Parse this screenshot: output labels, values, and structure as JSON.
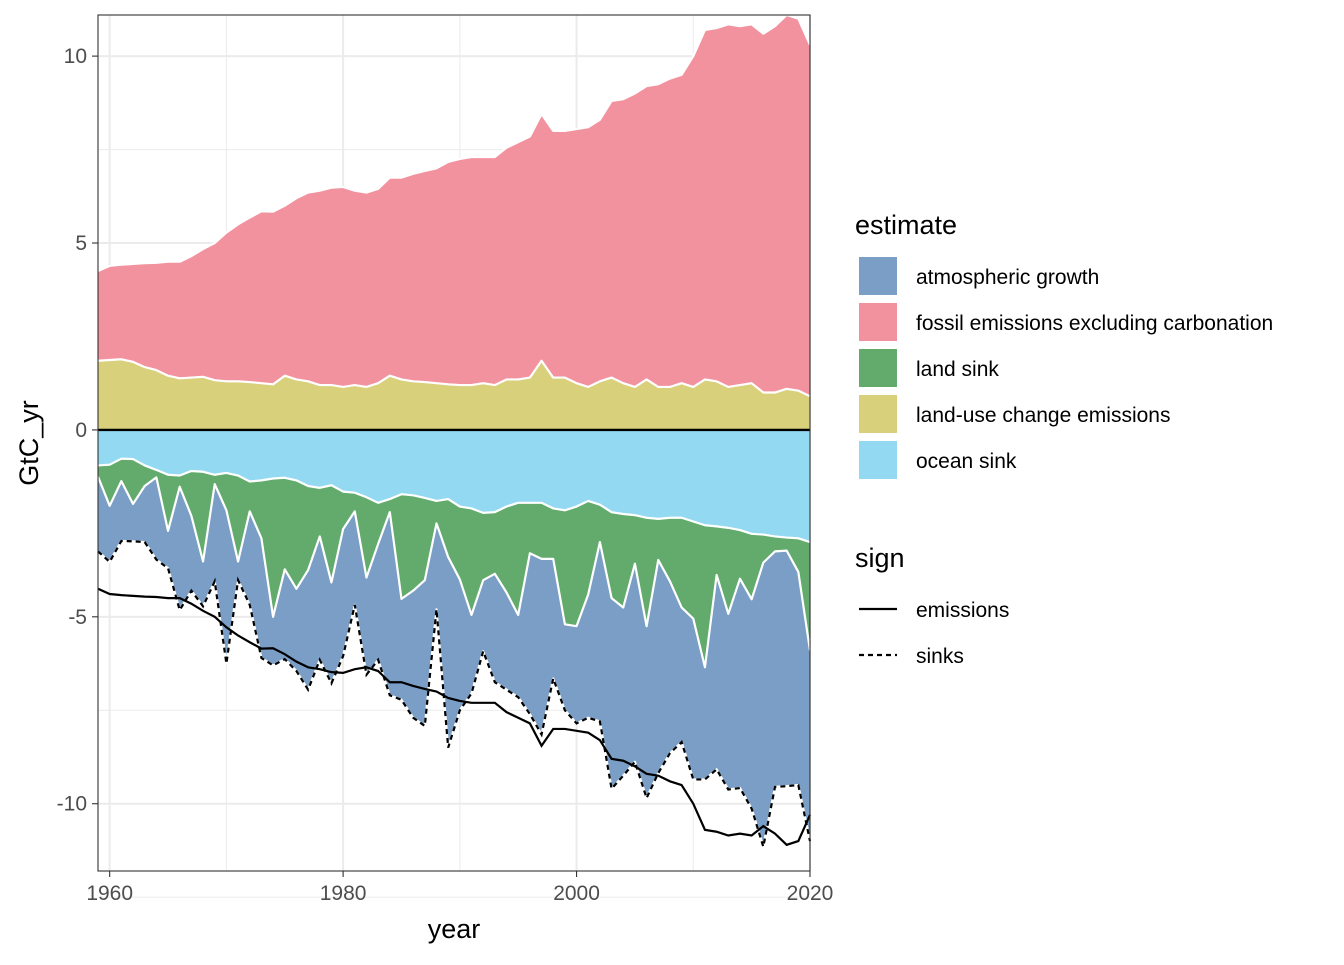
{
  "chart_data": {
    "type": "area",
    "xlabel": "year",
    "ylabel": "GtC_yr",
    "xlim": [
      1959,
      2020
    ],
    "ylim": [
      -11.8,
      11.1
    ],
    "grid": true,
    "x_ticks": [
      1960,
      1980,
      2000,
      2020
    ],
    "x_tick_labels": [
      "1960",
      "1980",
      "2000",
      "2020"
    ],
    "y_ticks": [
      10,
      5,
      0,
      -5,
      -10
    ],
    "y_tick_labels": [
      "10",
      "5",
      "0",
      "-5",
      "-10"
    ],
    "legend_position": "right",
    "legends": [
      {
        "title": "estimate",
        "entries": [
          {
            "label": "atmospheric growth",
            "color": "#7a9ec5"
          },
          {
            "label": "fossil emissions excluding carbonation",
            "color": "#f2929e"
          },
          {
            "label": "land sink",
            "color": "#62ab6c"
          },
          {
            "label": "land-use change emissions",
            "color": "#d9d07c"
          },
          {
            "label": "ocean sink",
            "color": "#94d9f2"
          }
        ]
      },
      {
        "title": "sign",
        "entries": [
          {
            "label": "emissions",
            "linetype": "solid"
          },
          {
            "label": "sinks",
            "linetype": "dashed"
          }
        ]
      }
    ],
    "x": [
      1959,
      1960,
      1961,
      1962,
      1963,
      1964,
      1965,
      1966,
      1967,
      1968,
      1969,
      1970,
      1971,
      1972,
      1973,
      1974,
      1975,
      1976,
      1977,
      1978,
      1979,
      1980,
      1981,
      1982,
      1983,
      1984,
      1985,
      1986,
      1987,
      1988,
      1989,
      1990,
      1991,
      1992,
      1993,
      1994,
      1995,
      1996,
      1997,
      1998,
      1999,
      2000,
      2001,
      2002,
      2003,
      2004,
      2005,
      2006,
      2007,
      2008,
      2009,
      2010,
      2011,
      2012,
      2013,
      2014,
      2015,
      2016,
      2017,
      2018,
      2019,
      2020
    ],
    "series": [
      {
        "name": "land-use change emissions",
        "sign": "emissions",
        "values": [
          1.85,
          1.87,
          1.89,
          1.82,
          1.68,
          1.6,
          1.45,
          1.38,
          1.4,
          1.42,
          1.33,
          1.3,
          1.3,
          1.28,
          1.25,
          1.22,
          1.45,
          1.35,
          1.3,
          1.2,
          1.2,
          1.15,
          1.2,
          1.15,
          1.25,
          1.45,
          1.35,
          1.3,
          1.28,
          1.25,
          1.22,
          1.2,
          1.2,
          1.25,
          1.2,
          1.35,
          1.35,
          1.4,
          1.85,
          1.4,
          1.4,
          1.25,
          1.15,
          1.3,
          1.4,
          1.25,
          1.15,
          1.35,
          1.15,
          1.15,
          1.25,
          1.15,
          1.35,
          1.3,
          1.15,
          1.2,
          1.25,
          1.0,
          1.0,
          1.1,
          1.05,
          0.9
        ]
      },
      {
        "name": "fossil emissions excluding carbonation",
        "sign": "emissions",
        "values": [
          2.4,
          2.52,
          2.53,
          2.62,
          2.78,
          2.87,
          3.05,
          3.12,
          3.25,
          3.42,
          3.67,
          3.98,
          4.2,
          4.4,
          4.6,
          4.62,
          4.55,
          4.85,
          5.05,
          5.2,
          5.28,
          5.35,
          5.2,
          5.2,
          5.2,
          5.3,
          5.4,
          5.55,
          5.65,
          5.75,
          5.95,
          6.05,
          6.1,
          6.05,
          6.1,
          6.2,
          6.35,
          6.45,
          6.6,
          6.6,
          6.6,
          6.8,
          6.95,
          7.0,
          7.4,
          7.6,
          7.85,
          7.85,
          8.1,
          8.25,
          8.25,
          8.85,
          9.35,
          9.45,
          9.7,
          9.6,
          9.6,
          9.6,
          9.8,
          10.0,
          9.95,
          9.4
        ]
      },
      {
        "name": "ocean sink",
        "sign": "sinks",
        "values": [
          -0.95,
          -0.93,
          -0.77,
          -0.78,
          -0.95,
          -1.07,
          -1.2,
          -1.22,
          -1.1,
          -1.12,
          -1.2,
          -1.15,
          -1.22,
          -1.38,
          -1.35,
          -1.3,
          -1.28,
          -1.35,
          -1.5,
          -1.55,
          -1.48,
          -1.65,
          -1.68,
          -1.8,
          -1.95,
          -1.85,
          -1.72,
          -1.75,
          -1.82,
          -1.9,
          -1.85,
          -2.05,
          -2.1,
          -2.22,
          -2.2,
          -2.05,
          -1.95,
          -1.95,
          -1.95,
          -2.1,
          -2.15,
          -2.05,
          -1.9,
          -2.0,
          -2.2,
          -2.25,
          -2.28,
          -2.35,
          -2.38,
          -2.35,
          -2.35,
          -2.45,
          -2.55,
          -2.58,
          -2.62,
          -2.68,
          -2.78,
          -2.8,
          -2.85,
          -2.88,
          -2.9,
          -3.0
        ]
      },
      {
        "name": "land sink",
        "sign": "sinks",
        "values": [
          -0.3,
          -1.1,
          -0.6,
          -1.2,
          -0.55,
          -0.2,
          -1.5,
          -0.3,
          -1.2,
          -2.4,
          -0.25,
          -1.0,
          -2.3,
          -0.8,
          -1.55,
          -3.7,
          -2.45,
          -2.9,
          -2.25,
          -1.3,
          -2.6,
          -1.0,
          -0.5,
          -2.15,
          -1.1,
          -0.35,
          -2.8,
          -2.55,
          -2.2,
          -0.6,
          -1.55,
          -1.95,
          -2.85,
          -1.8,
          -1.65,
          -2.3,
          -3.0,
          -1.35,
          -1.5,
          -1.35,
          -3.05,
          -3.2,
          -2.5,
          -1.0,
          -2.3,
          -2.5,
          -1.3,
          -2.9,
          -1.1,
          -1.7,
          -2.4,
          -2.6,
          -3.8,
          -1.3,
          -2.3,
          -1.3,
          -1.75,
          -0.75,
          -0.4,
          -0.35,
          -0.9,
          -2.9
        ]
      },
      {
        "name": "atmospheric growth",
        "sign": "sinks",
        "values": [
          -2.0,
          -1.5,
          -1.6,
          -1.0,
          -1.5,
          -2.2,
          -1.0,
          -3.3,
          -2.0,
          -1.2,
          -2.6,
          -4.1,
          -0.5,
          -2.5,
          -3.2,
          -1.3,
          -2.4,
          -2.2,
          -3.2,
          -3.3,
          -2.7,
          -3.4,
          -2.5,
          -2.6,
          -3.1,
          -4.9,
          -2.7,
          -3.4,
          -3.9,
          -2.3,
          -5.1,
          -3.5,
          -2.1,
          -1.9,
          -2.9,
          -2.6,
          -2.2,
          -4.3,
          -4.7,
          -3.2,
          -2.3,
          -2.6,
          -3.3,
          -4.8,
          -5.1,
          -4.5,
          -5.3,
          -4.6,
          -5.7,
          -4.6,
          -3.6,
          -4.3,
          -3.0,
          -5.2,
          -4.7,
          -5.6,
          -5.6,
          -7.6,
          -6.3,
          -6.3,
          -5.7,
          -5.1
        ]
      }
    ]
  }
}
